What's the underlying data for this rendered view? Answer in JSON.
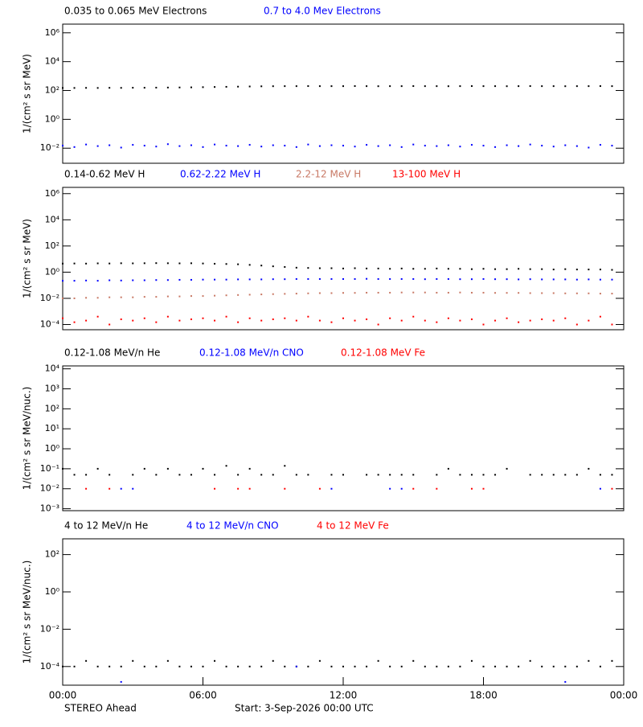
{
  "chart_data": [
    {
      "type": "scatter",
      "log_y": true,
      "y_label": "1/(cm² s sr MeV)",
      "xlim": [
        0,
        24
      ],
      "ylim": [
        0.0009,
        4000000
      ],
      "yticks": [
        {
          "value": 0.01,
          "label": "10⁻²"
        },
        {
          "value": 1,
          "label": "10⁰"
        },
        {
          "value": 100,
          "label": "10²"
        },
        {
          "value": 10000,
          "label": "10⁴"
        },
        {
          "value": 1000000,
          "label": "10⁶"
        }
      ],
      "x": [
        0,
        0.5,
        1,
        1.5,
        2,
        2.5,
        3,
        3.5,
        4,
        4.5,
        5,
        5.5,
        6,
        6.5,
        7,
        7.5,
        8,
        8.5,
        9,
        9.5,
        10,
        10.5,
        11,
        11.5,
        12,
        12.5,
        13,
        13.5,
        14,
        14.5,
        15,
        15.5,
        16,
        16.5,
        17,
        17.5,
        18,
        18.5,
        19,
        19.5,
        20,
        20.5,
        21,
        21.5,
        22,
        22.5,
        23,
        23.5
      ],
      "series": [
        {
          "name": "0.035 to 0.065 MeV Electrons",
          "color": "#000000",
          "values": [
            150,
            150,
            152,
            150,
            153,
            152,
            155,
            155,
            158,
            160,
            162,
            165,
            170,
            175,
            180,
            185,
            190,
            195,
            198,
            200,
            200,
            202,
            200,
            200,
            200,
            202,
            200,
            198,
            200,
            200,
            202,
            200,
            200,
            198,
            200,
            202,
            200,
            200,
            198,
            200,
            202,
            200,
            200,
            198,
            200,
            200,
            202,
            200
          ]
        },
        {
          "name": "0.7 to 4.0 Mev Electrons",
          "color": "#0000ff",
          "values": [
            0.015,
            0.012,
            0.018,
            0.014,
            0.016,
            0.011,
            0.017,
            0.015,
            0.013,
            0.019,
            0.014,
            0.016,
            0.012,
            0.018,
            0.015,
            0.014,
            0.017,
            0.013,
            0.016,
            0.015,
            0.012,
            0.018,
            0.014,
            0.016,
            0.015,
            0.013,
            0.017,
            0.014,
            0.016,
            0.012,
            0.018,
            0.015,
            0.014,
            0.016,
            0.013,
            0.017,
            0.015,
            0.012,
            0.016,
            0.014,
            0.018,
            0.015,
            0.013,
            0.016,
            0.014,
            0.011,
            0.017,
            0.015
          ]
        }
      ]
    },
    {
      "type": "scatter",
      "log_y": true,
      "y_label": "1/(cm² s sr MeV)",
      "xlim": [
        0,
        24
      ],
      "ylim": [
        4e-05,
        3000000
      ],
      "yticks": [
        {
          "value": 0.0001,
          "label": "10⁻⁴"
        },
        {
          "value": 0.01,
          "label": "10⁻²"
        },
        {
          "value": 1,
          "label": "10⁰"
        },
        {
          "value": 100,
          "label": "10²"
        },
        {
          "value": 10000,
          "label": "10⁴"
        },
        {
          "value": 1000000,
          "label": "10⁶"
        }
      ],
      "x": [
        0,
        0.5,
        1,
        1.5,
        2,
        2.5,
        3,
        3.5,
        4,
        4.5,
        5,
        5.5,
        6,
        6.5,
        7,
        7.5,
        8,
        8.5,
        9,
        9.5,
        10,
        10.5,
        11,
        11.5,
        12,
        12.5,
        13,
        13.5,
        14,
        14.5,
        15,
        15.5,
        16,
        16.5,
        17,
        17.5,
        18,
        18.5,
        19,
        19.5,
        20,
        20.5,
        21,
        21.5,
        22,
        22.5,
        23,
        23.5
      ],
      "series": [
        {
          "name": "0.14-0.62 MeV H",
          "color": "#000000",
          "values": [
            4.5,
            4.6,
            4.5,
            4.7,
            4.6,
            4.8,
            4.7,
            4.8,
            4.9,
            4.8,
            4.7,
            4.8,
            4.6,
            4.4,
            4.2,
            4.0,
            3.6,
            3.2,
            2.8,
            2.5,
            2.2,
            2.1,
            2.0,
            2.0,
            1.9,
            2.0,
            1.9,
            1.9,
            1.8,
            1.9,
            1.8,
            1.8,
            1.9,
            1.8,
            1.8,
            1.7,
            1.8,
            1.7,
            1.7,
            1.8,
            1.7,
            1.7,
            1.6,
            1.7,
            1.6,
            1.6,
            1.6,
            1.5
          ]
        },
        {
          "name": "0.62-2.22 MeV H",
          "color": "#0000ff",
          "values": [
            0.22,
            0.22,
            0.23,
            0.22,
            0.24,
            0.23,
            0.24,
            0.24,
            0.25,
            0.25,
            0.26,
            0.26,
            0.27,
            0.27,
            0.27,
            0.28,
            0.28,
            0.28,
            0.29,
            0.29,
            0.3,
            0.3,
            0.3,
            0.3,
            0.3,
            0.3,
            0.31,
            0.3,
            0.3,
            0.3,
            0.3,
            0.29,
            0.3,
            0.3,
            0.29,
            0.29,
            0.3,
            0.29,
            0.29,
            0.28,
            0.29,
            0.28,
            0.28,
            0.28,
            0.27,
            0.28,
            0.27,
            0.27
          ]
        },
        {
          "name": "2.2-12 MeV H",
          "color": "#c87864",
          "values": [
            0.01,
            0.01,
            0.011,
            0.011,
            0.012,
            0.012,
            0.012,
            0.013,
            0.013,
            0.014,
            0.014,
            0.015,
            0.015,
            0.016,
            0.017,
            0.018,
            0.019,
            0.02,
            0.021,
            0.022,
            0.023,
            0.024,
            0.025,
            0.025,
            0.026,
            0.026,
            0.027,
            0.027,
            0.027,
            0.028,
            0.028,
            0.028,
            0.027,
            0.027,
            0.028,
            0.027,
            0.027,
            0.026,
            0.026,
            0.026,
            0.025,
            0.025,
            0.025,
            0.024,
            0.024,
            0.024,
            0.023,
            0.023
          ]
        },
        {
          "name": "13-100 MeV H",
          "color": "#ff0000",
          "values": [
            0.0003,
            0.00015,
            0.0002,
            0.0004,
            0.0001,
            0.00025,
            0.0002,
            0.0003,
            0.00015,
            0.0004,
            0.0002,
            0.00025,
            0.0003,
            0.0002,
            0.0004,
            0.00015,
            0.0003,
            0.0002,
            0.00025,
            0.0003,
            0.0002,
            0.0004,
            0.0002,
            0.00015,
            0.0003,
            0.0002,
            0.00025,
            0.0001,
            0.0003,
            0.0002,
            0.0004,
            0.0002,
            0.00015,
            0.0003,
            0.0002,
            0.00025,
            0.0001,
            0.0002,
            0.0003,
            0.00015,
            0.0002,
            0.00025,
            0.0002,
            0.0003,
            0.0001,
            0.0002,
            0.0004,
            0.0001
          ]
        }
      ]
    },
    {
      "type": "scatter",
      "log_y": true,
      "y_label": "1/(cm² s sr MeV/nuc.)",
      "xlim": [
        0,
        24
      ],
      "ylim": [
        0.0008,
        14000
      ],
      "yticks": [
        {
          "value": 0.001,
          "label": "10⁻³"
        },
        {
          "value": 0.01,
          "label": "10⁻²"
        },
        {
          "value": 0.1,
          "label": "10⁻¹"
        },
        {
          "value": 1,
          "label": "10⁰"
        },
        {
          "value": 10,
          "label": "10¹"
        },
        {
          "value": 100,
          "label": "10²"
        },
        {
          "value": 1000,
          "label": "10³"
        },
        {
          "value": 10000,
          "label": "10⁴"
        }
      ],
      "x": [
        0,
        0.5,
        1,
        1.5,
        2,
        2.5,
        3,
        3.5,
        4,
        4.5,
        5,
        5.5,
        6,
        6.5,
        7,
        7.5,
        8,
        8.5,
        9,
        9.5,
        10,
        10.5,
        11,
        11.5,
        12,
        12.5,
        13,
        13.5,
        14,
        14.5,
        15,
        15.5,
        16,
        16.5,
        17,
        17.5,
        18,
        18.5,
        19,
        19.5,
        20,
        20.5,
        21,
        21.5,
        22,
        22.5,
        23,
        23.5
      ],
      "series": [
        {
          "name": "0.12-1.08 MeV/n He",
          "color": "#000000",
          "values": [
            0.1,
            0.05,
            0.05,
            0.1,
            0.05,
            null,
            0.05,
            0.1,
            0.05,
            0.1,
            0.05,
            0.05,
            0.1,
            0.05,
            0.14,
            0.05,
            0.1,
            0.05,
            0.05,
            0.14,
            0.05,
            0.05,
            null,
            0.05,
            0.05,
            null,
            0.05,
            0.05,
            0.05,
            0.05,
            0.05,
            null,
            0.05,
            0.1,
            0.05,
            0.05,
            0.05,
            0.05,
            0.1,
            null,
            0.05,
            0.05,
            0.05,
            0.05,
            0.05,
            0.1,
            0.05,
            0.05
          ]
        },
        {
          "name": "0.12-1.08 MeV/n CNO",
          "color": "#0000ff",
          "values": [
            null,
            null,
            null,
            null,
            null,
            0.01,
            0.01,
            null,
            null,
            null,
            null,
            null,
            null,
            null,
            null,
            null,
            null,
            null,
            null,
            null,
            null,
            null,
            null,
            0.01,
            null,
            null,
            null,
            null,
            0.01,
            0.01,
            null,
            null,
            null,
            null,
            null,
            null,
            null,
            null,
            null,
            null,
            null,
            null,
            null,
            null,
            null,
            null,
            0.01,
            null
          ]
        },
        {
          "name": "0.12-1.08 MeV Fe",
          "color": "#ff0000",
          "values": [
            null,
            null,
            0.01,
            null,
            0.01,
            null,
            null,
            null,
            null,
            null,
            null,
            null,
            null,
            0.01,
            null,
            0.01,
            0.01,
            null,
            null,
            0.01,
            null,
            null,
            0.01,
            null,
            null,
            null,
            null,
            null,
            null,
            null,
            0.01,
            null,
            0.01,
            null,
            null,
            0.01,
            0.01,
            null,
            null,
            null,
            null,
            null,
            null,
            null,
            null,
            null,
            null,
            0.01
          ]
        }
      ]
    },
    {
      "type": "scatter",
      "log_y": true,
      "y_label": "1/(cm² s sr MeV/nuc.)",
      "xlim": [
        0,
        24
      ],
      "ylim": [
        1e-05,
        700
      ],
      "yticks": [
        {
          "value": 0.0001,
          "label": "10⁻⁴"
        },
        {
          "value": 0.01,
          "label": "10⁻²"
        },
        {
          "value": 1,
          "label": "10⁰"
        },
        {
          "value": 100,
          "label": "10²"
        }
      ],
      "xticks": [
        {
          "value": 0,
          "label": "00:00"
        },
        {
          "value": 6,
          "label": "06:00"
        },
        {
          "value": 12,
          "label": "12:00"
        },
        {
          "value": 18,
          "label": "18:00"
        },
        {
          "value": 24,
          "label": "00:00"
        }
      ],
      "x": [
        0,
        0.5,
        1,
        1.5,
        2,
        2.5,
        3,
        3.5,
        4,
        4.5,
        5,
        5.5,
        6,
        6.5,
        7,
        7.5,
        8,
        8.5,
        9,
        9.5,
        10,
        10.5,
        11,
        11.5,
        12,
        12.5,
        13,
        13.5,
        14,
        14.5,
        15,
        15.5,
        16,
        16.5,
        17,
        17.5,
        18,
        18.5,
        19,
        19.5,
        20,
        20.5,
        21,
        21.5,
        22,
        22.5,
        23,
        23.5
      ],
      "series": [
        {
          "name": "4 to 12 MeV/n He",
          "color": "#000000",
          "values": [
            0.0001,
            0.0001,
            0.0002,
            0.0001,
            0.0001,
            0.0001,
            0.0002,
            0.0001,
            0.0001,
            0.0002,
            0.0001,
            0.0001,
            0.0001,
            0.0002,
            0.0001,
            0.0001,
            0.0001,
            0.0001,
            0.0002,
            0.0001,
            0.0001,
            0.0001,
            0.0002,
            0.0001,
            0.0001,
            0.0001,
            0.0001,
            0.0002,
            0.0001,
            0.0001,
            0.0002,
            0.0001,
            0.0001,
            0.0001,
            0.0001,
            0.0002,
            0.0001,
            0.0001,
            0.0001,
            0.0001,
            0.0002,
            0.0001,
            0.0001,
            0.0001,
            0.0001,
            0.0002,
            0.0001,
            0.0002
          ]
        },
        {
          "name": "4 to 12 MeV/n CNO",
          "color": "#0000ff",
          "values": [
            null,
            null,
            null,
            null,
            null,
            1.5e-05,
            null,
            null,
            null,
            null,
            null,
            null,
            null,
            null,
            null,
            null,
            null,
            null,
            null,
            null,
            0.0001,
            null,
            null,
            null,
            null,
            null,
            null,
            null,
            null,
            null,
            null,
            null,
            null,
            null,
            null,
            null,
            null,
            null,
            null,
            null,
            null,
            null,
            null,
            1.5e-05,
            null,
            null,
            null,
            null
          ]
        },
        {
          "name": "4 to 12 MeV Fe",
          "color": "#ff0000",
          "values": [
            null,
            null,
            null,
            null,
            null,
            null,
            null,
            null,
            null,
            null,
            null,
            null,
            null,
            null,
            null,
            null,
            null,
            null,
            null,
            null,
            null,
            null,
            null,
            null,
            null,
            null,
            null,
            null,
            null,
            null,
            null,
            null,
            null,
            null,
            null,
            null,
            null,
            null,
            null,
            null,
            null,
            null,
            null,
            null,
            null,
            null,
            null,
            null
          ]
        }
      ]
    }
  ],
  "footer": {
    "left": "STEREO Ahead",
    "right": "Start:  3-Sep-2026 00:00 UTC"
  }
}
